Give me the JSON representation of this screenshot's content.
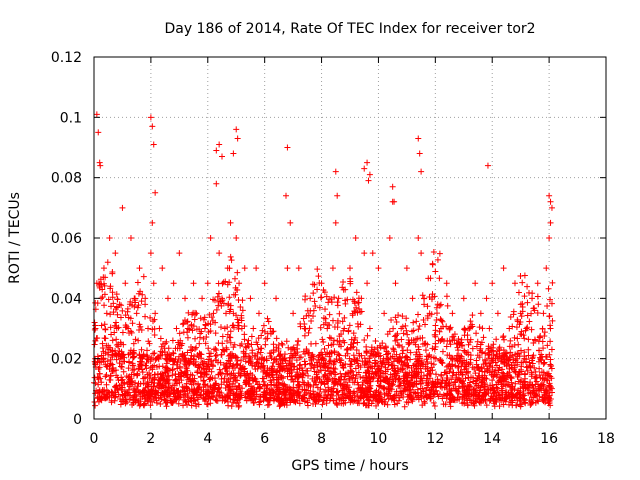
{
  "chart_data": {
    "type": "scatter",
    "title": "Day 186 of 2014, Rate Of TEC Index for receiver tor2",
    "xlabel": "GPS time / hours",
    "ylabel": "ROTI / TECUs",
    "xlim": [
      0,
      18
    ],
    "ylim": [
      0,
      0.12
    ],
    "xticks": [
      0,
      2,
      4,
      6,
      8,
      10,
      12,
      14,
      16,
      18
    ],
    "xtick_labels": [
      "0",
      "2",
      "4",
      "6",
      "8",
      "10",
      "12",
      "14",
      "16",
      "18"
    ],
    "yticks": [
      0,
      0.02,
      0.04,
      0.06,
      0.08,
      0.1,
      0.12
    ],
    "ytick_labels": [
      "0",
      "0.02",
      "0.04",
      "0.06",
      "0.08",
      "0.1",
      "0.12"
    ],
    "grid": true,
    "marker": "plus",
    "color": "#ff0000",
    "series": [
      {
        "name": "tor2",
        "x": [
          0.0,
          0.05,
          0.1,
          0.15,
          0.2,
          0.25,
          0.3,
          0.35,
          0.4,
          0.45,
          0.5,
          0.55,
          0.6,
          0.65,
          0.7,
          0.75,
          0.8,
          0.85,
          0.9,
          0.95,
          1.0,
          1.1,
          1.2,
          1.3,
          1.4,
          1.5,
          1.6,
          1.7,
          1.8,
          1.9,
          2.0,
          2.05,
          2.1,
          2.15,
          2.2,
          2.3,
          2.4,
          2.5,
          2.6,
          2.7,
          2.8,
          2.9,
          3.0,
          3.1,
          3.2,
          3.3,
          3.4,
          3.5,
          3.6,
          3.7,
          3.8,
          3.9,
          4.0,
          4.1,
          4.2,
          4.3,
          4.4,
          4.5,
          4.6,
          4.7,
          4.8,
          4.9,
          5.0,
          5.1,
          5.2,
          5.3,
          5.4,
          5.5,
          5.6,
          5.7,
          5.8,
          5.9,
          6.0,
          6.2,
          6.4,
          6.6,
          6.8,
          6.9,
          7.0,
          7.2,
          7.4,
          7.6,
          7.8,
          8.0,
          8.2,
          8.4,
          8.5,
          8.6,
          8.8,
          9.0,
          9.2,
          9.4,
          9.5,
          9.6,
          9.7,
          9.8,
          10.0,
          10.2,
          10.4,
          10.5,
          10.6,
          10.8,
          11.0,
          11.2,
          11.4,
          11.5,
          11.6,
          11.8,
          12.0,
          12.2,
          12.4,
          12.6,
          12.8,
          13.0,
          13.2,
          13.4,
          13.6,
          13.8,
          13.9,
          14.0,
          14.2,
          14.4,
          14.6,
          14.8,
          15.0,
          15.2,
          15.4,
          15.6,
          15.8,
          15.9,
          16.0,
          16.05,
          16.1,
          0.1,
          0.15,
          0.2,
          0.22,
          2.0,
          2.05,
          2.1,
          2.15,
          4.3,
          4.4,
          4.5,
          4.9,
          5.0,
          5.05,
          6.75,
          6.8,
          8.5,
          8.55,
          9.5,
          9.6,
          9.65,
          9.7,
          10.5,
          10.55,
          11.4,
          11.45,
          11.5,
          13.85,
          16.0,
          16.05,
          1.0,
          1.4,
          3.0,
          3.5,
          5.5,
          7.5,
          10.0,
          12.5,
          14.5,
          15.0
        ],
        "y": [
          0.012,
          0.03,
          0.045,
          0.02,
          0.015,
          0.04,
          0.025,
          0.05,
          0.018,
          0.035,
          0.022,
          0.06,
          0.028,
          0.042,
          0.016,
          0.055,
          0.03,
          0.024,
          0.038,
          0.02,
          0.07,
          0.045,
          0.03,
          0.06,
          0.025,
          0.035,
          0.05,
          0.02,
          0.04,
          0.03,
          0.055,
          0.065,
          0.045,
          0.035,
          0.02,
          0.03,
          0.05,
          0.025,
          0.04,
          0.02,
          0.045,
          0.03,
          0.055,
          0.025,
          0.04,
          0.03,
          0.02,
          0.045,
          0.035,
          0.025,
          0.04,
          0.03,
          0.045,
          0.06,
          0.035,
          0.078,
          0.055,
          0.04,
          0.03,
          0.05,
          0.065,
          0.035,
          0.06,
          0.045,
          0.03,
          0.05,
          0.025,
          0.04,
          0.03,
          0.05,
          0.035,
          0.02,
          0.045,
          0.03,
          0.04,
          0.025,
          0.05,
          0.065,
          0.035,
          0.05,
          0.03,
          0.04,
          0.025,
          0.045,
          0.03,
          0.05,
          0.065,
          0.04,
          0.03,
          0.05,
          0.06,
          0.04,
          0.055,
          0.045,
          0.03,
          0.055,
          0.05,
          0.035,
          0.06,
          0.072,
          0.045,
          0.03,
          0.05,
          0.04,
          0.06,
          0.055,
          0.04,
          0.035,
          0.025,
          0.03,
          0.045,
          0.035,
          0.025,
          0.04,
          0.03,
          0.045,
          0.035,
          0.04,
          0.03,
          0.045,
          0.035,
          0.05,
          0.03,
          0.045,
          0.035,
          0.03,
          0.04,
          0.045,
          0.035,
          0.05,
          0.06,
          0.065,
          0.07,
          0.101,
          0.095,
          0.085,
          0.084,
          0.1,
          0.097,
          0.091,
          0.075,
          0.089,
          0.091,
          0.087,
          0.088,
          0.096,
          0.093,
          0.074,
          0.09,
          0.082,
          0.074,
          0.083,
          0.085,
          0.079,
          0.081,
          0.077,
          0.072,
          0.093,
          0.088,
          0.082,
          0.084,
          0.074,
          0.072,
          0.008,
          0.01,
          0.007,
          0.009,
          0.008,
          0.006,
          0.009,
          0.007,
          0.008,
          0.006
        ]
      }
    ]
  }
}
